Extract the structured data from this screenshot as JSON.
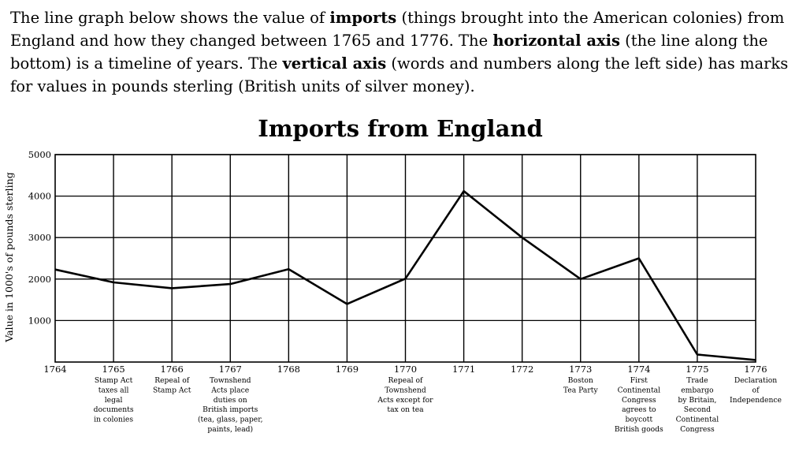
{
  "intro": {
    "s1": "The line graph below shows the value of ",
    "b1": "imports",
    "s2": " (things brought into the American colonies) from England and how they changed between 1765 and 1776. The ",
    "b2": "horizontal axis",
    "s3": " (the line along the bottom) is a timeline of years. The ",
    "b3": "vertical axis",
    "s4": " (words and numbers along the left side) has marks for values in pounds sterling (British units of silver money)."
  },
  "chart_data": {
    "type": "line",
    "title": "Imports from England",
    "xlabel": "",
    "ylabel": "Value in 1000's of pounds sterling",
    "x": [
      1764,
      1765,
      1766,
      1767,
      1768,
      1769,
      1770,
      1771,
      1772,
      1773,
      1774,
      1775,
      1776
    ],
    "series": [
      {
        "values": [
          2230,
          1920,
          1780,
          1880,
          2240,
          1400,
          2010,
          4120,
          3000,
          2000,
          2500,
          180,
          50
        ]
      }
    ],
    "xlim": [
      1764,
      1776
    ],
    "ylim": [
      0,
      5000
    ],
    "yticks": [
      1000,
      2000,
      3000,
      4000,
      5000
    ],
    "grid": true,
    "line_color": "#000000",
    "annotations": [
      {
        "x": 1765,
        "lines": [
          "Stamp Act",
          "taxes all",
          "legal",
          "documents",
          "in colonies"
        ]
      },
      {
        "x": 1766,
        "lines": [
          "Repeal of",
          "Stamp Act"
        ]
      },
      {
        "x": 1767,
        "lines": [
          "Townshend",
          "Acts place",
          "duties on",
          "British imports",
          "(tea, glass, paper,",
          "paints, lead)"
        ]
      },
      {
        "x": 1770,
        "lines": [
          "Repeal of",
          "Townshend",
          "Acts except for",
          "tax on tea"
        ]
      },
      {
        "x": 1773,
        "lines": [
          "Boston",
          "Tea Party"
        ]
      },
      {
        "x": 1774,
        "lines": [
          "First",
          "Continental",
          "Congress",
          "agrees to",
          "boycott",
          "British goods"
        ]
      },
      {
        "x": 1775,
        "lines": [
          "Trade",
          "embargo",
          "by Britain,",
          "Second",
          "Continental",
          "Congress"
        ]
      },
      {
        "x": 1776,
        "lines": [
          "Declaration",
          "of",
          "Independence"
        ]
      }
    ]
  }
}
